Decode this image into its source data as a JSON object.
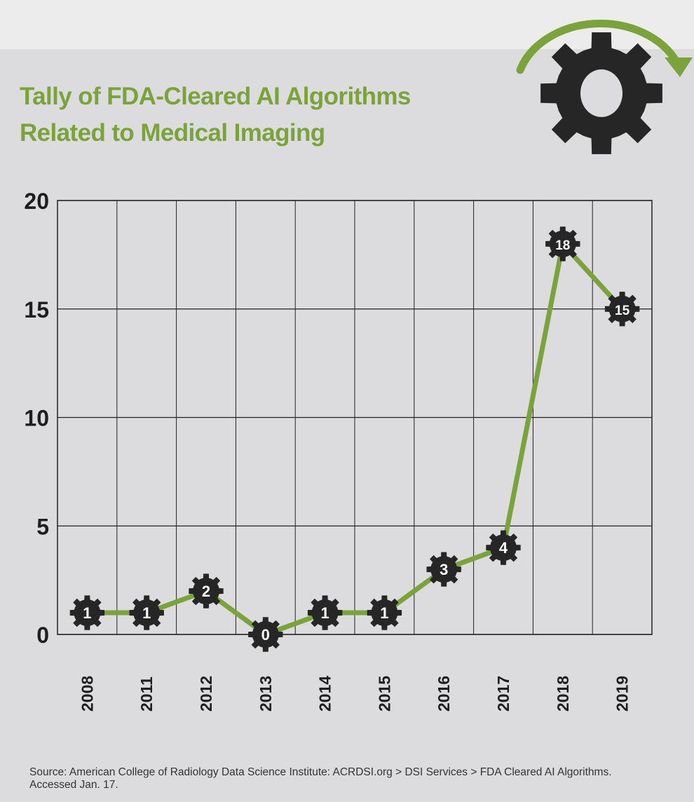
{
  "chart_data": {
    "type": "line",
    "title": "Tally of FDA-Cleared AI Algorithms Related to Medical Imaging",
    "title_lines": [
      "Tally of FDA-Cleared AI Algorithms",
      "Related to Medical Imaging"
    ],
    "categories": [
      "2008",
      "2011",
      "2012",
      "2013",
      "2014",
      "2015",
      "2016",
      "2017",
      "2018",
      "2019"
    ],
    "values": [
      1,
      1,
      2,
      0,
      1,
      1,
      3,
      4,
      18,
      15
    ],
    "data_labels": [
      "1",
      "1",
      "2",
      "0",
      "1",
      "1",
      "3",
      "4",
      "18",
      "15"
    ],
    "xlabel": "",
    "ylabel": "",
    "ylim": [
      0,
      20
    ],
    "yticks": [
      0,
      5,
      10,
      15,
      20
    ],
    "ytick_labels": [
      "0",
      "5",
      "10",
      "15",
      "20"
    ],
    "grid": true,
    "line_color": "#7aa33c",
    "marker_color": "#262626",
    "marker": "gear"
  },
  "source": "Source: American College of Radiology Data Science Institute: ACRDSI.org > DSI Services > FDA Cleared AI Algorithms. Accessed Jan. 17.",
  "colors": {
    "accent": "#7aa33c",
    "dark": "#262626"
  }
}
